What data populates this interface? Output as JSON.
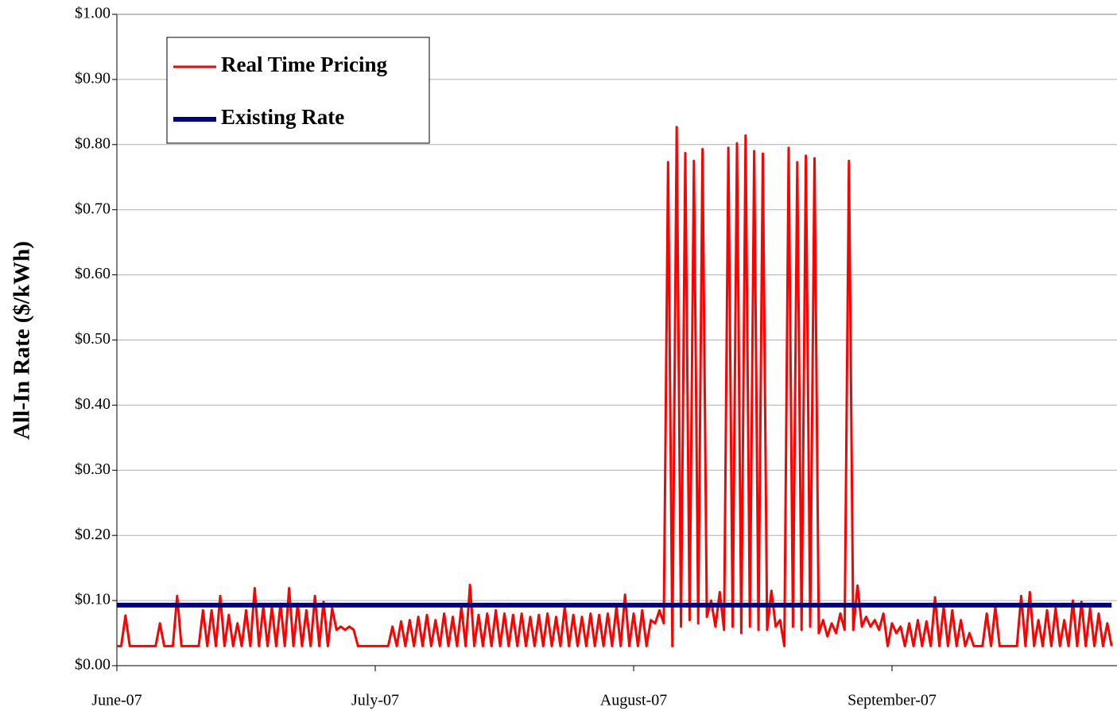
{
  "chart_data": {
    "type": "line",
    "y_axis_label": "All-In Rate ($/kWh)",
    "ylim": [
      0,
      1
    ],
    "yticks": [
      {
        "value": 0,
        "label": "$0.00"
      },
      {
        "value": 0.1,
        "label": "$0.10"
      },
      {
        "value": 0.2,
        "label": "$0.20"
      },
      {
        "value": 0.3,
        "label": "$0.30"
      },
      {
        "value": 0.4,
        "label": "$0.40"
      },
      {
        "value": 0.5,
        "label": "$0.50"
      },
      {
        "value": 0.6,
        "label": "$0.60"
      },
      {
        "value": 0.7,
        "label": "$0.70"
      },
      {
        "value": 0.8,
        "label": "$0.80"
      },
      {
        "value": 0.9,
        "label": "$0.90"
      },
      {
        "value": 1,
        "label": "$1.00"
      }
    ],
    "grid": true,
    "legend": "top-left",
    "categories": [
      "June-07",
      null,
      null,
      null,
      null,
      null,
      null,
      null,
      null,
      null,
      null,
      null,
      null,
      null,
      null,
      null,
      null,
      null,
      null,
      null,
      null,
      null,
      null,
      null,
      null,
      null,
      null,
      null,
      null,
      null,
      null,
      null,
      null,
      null,
      null,
      null,
      null,
      null,
      null,
      null,
      null,
      null,
      null,
      null,
      null,
      null,
      null,
      null,
      null,
      null,
      null,
      null,
      null,
      null,
      null,
      null,
      null,
      null,
      null,
      null,
      "July-07",
      null,
      null,
      null,
      null,
      null,
      null,
      null,
      null,
      null,
      null,
      null,
      null,
      null,
      null,
      null,
      null,
      null,
      null,
      null,
      null,
      null,
      null,
      null,
      null,
      null,
      null,
      null,
      null,
      null,
      null,
      null,
      null,
      null,
      null,
      null,
      null,
      null,
      null,
      null,
      null,
      null,
      null,
      null,
      null,
      null,
      null,
      null,
      null,
      null,
      null,
      null,
      null,
      null,
      null,
      null,
      null,
      null,
      null,
      null,
      "August-07",
      null,
      null,
      null,
      null,
      null,
      null,
      null,
      null,
      null,
      null,
      null,
      null,
      null,
      null,
      null,
      null,
      null,
      null,
      null,
      null,
      null,
      null,
      null,
      null,
      null,
      null,
      null,
      null,
      null,
      null,
      null,
      null,
      null,
      null,
      null,
      null,
      null,
      null,
      null,
      null,
      null,
      null,
      null,
      null,
      null,
      null,
      null,
      null,
      null,
      null,
      null,
      null,
      null,
      null,
      null,
      null,
      null,
      null,
      null,
      "September-07",
      null,
      null,
      null,
      null,
      null,
      null,
      null,
      null,
      null,
      null,
      null,
      null,
      null,
      null,
      null,
      null,
      null,
      null,
      null,
      null,
      null,
      null,
      null,
      null,
      null,
      null,
      null,
      null,
      null,
      null,
      null,
      null,
      null,
      null,
      null,
      null,
      null,
      null,
      null,
      null,
      null,
      null,
      null,
      null,
      null,
      null,
      null,
      null,
      null,
      null,
      null
    ],
    "series": [
      {
        "name": "Real Time Pricing",
        "color": "#ff0000",
        "values": [
          0.03,
          0.03,
          0.077,
          0.03,
          0.03,
          0.03,
          0.03,
          0.03,
          0.03,
          0.03,
          0.065,
          0.03,
          0.03,
          0.03,
          0.107,
          0.03,
          0.03,
          0.03,
          0.03,
          0.03,
          0.085,
          0.03,
          0.085,
          0.03,
          0.107,
          0.03,
          0.078,
          0.03,
          0.065,
          0.03,
          0.085,
          0.03,
          0.119,
          0.03,
          0.09,
          0.03,
          0.09,
          0.03,
          0.095,
          0.03,
          0.119,
          0.03,
          0.095,
          0.03,
          0.085,
          0.03,
          0.107,
          0.03,
          0.098,
          0.03,
          0.088,
          0.055,
          0.06,
          0.055,
          0.06,
          0.055,
          0.03,
          0.03,
          0.03,
          0.03,
          0.03,
          0.03,
          0.03,
          0.03,
          0.06,
          0.03,
          0.068,
          0.03,
          0.07,
          0.03,
          0.075,
          0.03,
          0.078,
          0.03,
          0.07,
          0.03,
          0.08,
          0.03,
          0.075,
          0.03,
          0.09,
          0.03,
          0.124,
          0.03,
          0.078,
          0.03,
          0.08,
          0.03,
          0.085,
          0.03,
          0.08,
          0.03,
          0.078,
          0.03,
          0.08,
          0.03,
          0.075,
          0.03,
          0.078,
          0.03,
          0.08,
          0.03,
          0.075,
          0.03,
          0.09,
          0.03,
          0.078,
          0.03,
          0.075,
          0.03,
          0.08,
          0.03,
          0.078,
          0.03,
          0.08,
          0.03,
          0.09,
          0.03,
          0.109,
          0.03,
          0.08,
          0.03,
          0.085,
          0.03,
          0.07,
          0.065,
          0.085,
          0.065,
          0.773,
          0.03,
          0.827,
          0.06,
          0.787,
          0.07,
          0.775,
          0.065,
          0.793,
          0.075,
          0.1,
          0.06,
          0.113,
          0.055,
          0.795,
          0.06,
          0.802,
          0.05,
          0.814,
          0.06,
          0.79,
          0.055,
          0.786,
          0.055,
          0.115,
          0.06,
          0.07,
          0.03,
          0.795,
          0.06,
          0.773,
          0.055,
          0.783,
          0.06,
          0.779,
          0.05,
          0.07,
          0.045,
          0.065,
          0.05,
          0.08,
          0.055,
          0.775,
          0.055,
          0.123,
          0.06,
          0.075,
          0.06,
          0.07,
          0.055,
          0.08,
          0.03,
          0.065,
          0.05,
          0.06,
          0.03,
          0.065,
          0.03,
          0.07,
          0.03,
          0.068,
          0.03,
          0.105,
          0.03,
          0.09,
          0.03,
          0.085,
          0.03,
          0.07,
          0.03,
          0.05,
          0.03,
          0.03,
          0.03,
          0.08,
          0.03,
          0.09,
          0.03,
          0.03,
          0.03,
          0.03,
          0.03,
          0.107,
          0.03,
          0.113,
          0.03,
          0.07,
          0.03,
          0.085,
          0.03,
          0.088,
          0.03,
          0.07,
          0.03,
          0.1,
          0.03,
          0.098,
          0.03,
          0.088,
          0.03,
          0.08,
          0.03,
          0.065,
          0.03
        ]
      },
      {
        "name": "Existing Rate",
        "color": "#000080",
        "values": [
          0.093,
          0.093,
          0.093,
          0.093,
          0.093,
          0.093,
          0.093,
          0.093,
          0.093,
          0.093,
          0.093,
          0.093,
          0.093,
          0.093,
          0.093,
          0.093,
          0.093,
          0.093,
          0.093,
          0.093,
          0.093,
          0.093,
          0.093,
          0.093,
          0.093,
          0.093,
          0.093,
          0.093,
          0.093,
          0.093,
          0.093,
          0.093,
          0.093,
          0.093,
          0.093,
          0.093,
          0.093,
          0.093,
          0.093,
          0.093,
          0.093,
          0.093,
          0.093,
          0.093,
          0.093,
          0.093,
          0.093,
          0.093,
          0.093,
          0.093,
          0.093,
          0.093,
          0.093,
          0.093,
          0.093,
          0.093,
          0.093,
          0.093,
          0.093,
          0.093,
          0.093,
          0.093,
          0.093,
          0.093,
          0.093,
          0.093,
          0.093,
          0.093,
          0.093,
          0.093,
          0.093,
          0.093,
          0.093,
          0.093,
          0.093,
          0.093,
          0.093,
          0.093,
          0.093,
          0.093,
          0.093,
          0.093,
          0.093,
          0.093,
          0.093,
          0.093,
          0.093,
          0.093,
          0.093,
          0.093,
          0.093,
          0.093,
          0.093,
          0.093,
          0.093,
          0.093,
          0.093,
          0.093,
          0.093,
          0.093,
          0.093,
          0.093,
          0.093,
          0.093,
          0.093,
          0.093,
          0.093,
          0.093,
          0.093,
          0.093,
          0.093,
          0.093,
          0.093,
          0.093,
          0.093,
          0.093,
          0.093,
          0.093,
          0.093,
          0.093,
          0.093,
          0.093,
          0.093,
          0.093,
          0.093,
          0.093,
          0.093,
          0.093,
          0.093,
          0.093,
          0.093,
          0.093,
          0.093,
          0.093,
          0.093,
          0.093,
          0.093,
          0.093,
          0.093,
          0.093,
          0.093,
          0.093,
          0.093,
          0.093,
          0.093,
          0.093,
          0.093,
          0.093,
          0.093,
          0.093,
          0.093,
          0.093,
          0.093,
          0.093,
          0.093,
          0.093,
          0.093,
          0.093,
          0.093,
          0.093,
          0.093,
          0.093,
          0.093,
          0.093,
          0.093,
          0.093,
          0.093,
          0.093,
          0.093,
          0.093,
          0.093,
          0.093,
          0.093,
          0.093,
          0.093,
          0.093,
          0.093,
          0.093,
          0.093,
          0.093,
          0.093,
          0.093,
          0.093,
          0.093,
          0.093,
          0.093,
          0.093,
          0.093,
          0.093,
          0.093,
          0.093,
          0.093,
          0.093,
          0.093,
          0.093,
          0.093,
          0.093,
          0.093,
          0.093,
          0.093,
          0.093,
          0.093,
          0.093,
          0.093,
          0.093,
          0.093,
          0.093,
          0.093,
          0.093,
          0.093,
          0.093,
          0.093,
          0.093,
          0.093,
          0.093,
          0.093,
          0.093,
          0.093,
          0.093,
          0.093,
          0.093,
          0.093,
          0.093,
          0.093,
          0.093,
          0.093,
          0.093,
          0.093,
          0.093,
          0.093,
          0.093,
          0.093
        ]
      }
    ]
  }
}
